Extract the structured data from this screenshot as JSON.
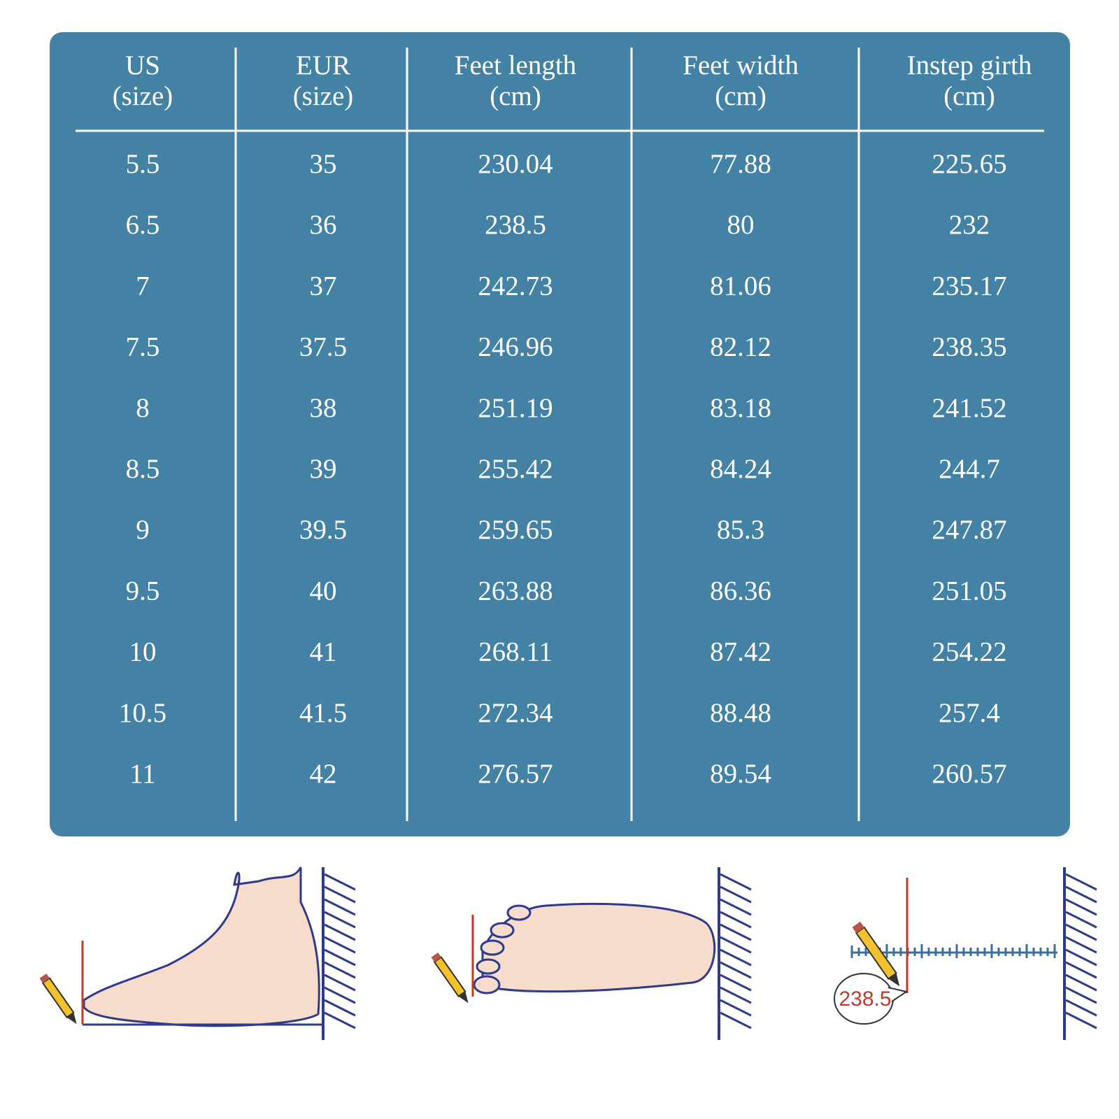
{
  "table": {
    "headers": [
      [
        "US",
        "(size)"
      ],
      [
        "EUR",
        "(size)"
      ],
      [
        "Feet length",
        "(cm)"
      ],
      [
        "Feet width",
        "(cm)"
      ],
      [
        "Instep girth",
        "(cm)"
      ]
    ],
    "rows": [
      [
        "5.5",
        "35",
        "230.04",
        "77.88",
        "225.65"
      ],
      [
        "6.5",
        "36",
        "238.5",
        "80",
        "232"
      ],
      [
        "7",
        "37",
        "242.73",
        "81.06",
        "235.17"
      ],
      [
        "7.5",
        "37.5",
        "246.96",
        "82.12",
        "238.35"
      ],
      [
        "8",
        "38",
        "251.19",
        "83.18",
        "241.52"
      ],
      [
        "8.5",
        "39",
        "255.42",
        "84.24",
        "244.7"
      ],
      [
        "9",
        "39.5",
        "259.65",
        "85.3",
        "247.87"
      ],
      [
        "9.5",
        "40",
        "263.88",
        "86.36",
        "251.05"
      ],
      [
        "10",
        "41",
        "268.11",
        "87.42",
        "254.22"
      ],
      [
        "10.5",
        "41.5",
        "272.34",
        "88.48",
        "257.4"
      ],
      [
        "11",
        "42",
        "276.57",
        "89.54",
        "260.57"
      ]
    ]
  },
  "illustration": {
    "measure_label": "238.5"
  }
}
